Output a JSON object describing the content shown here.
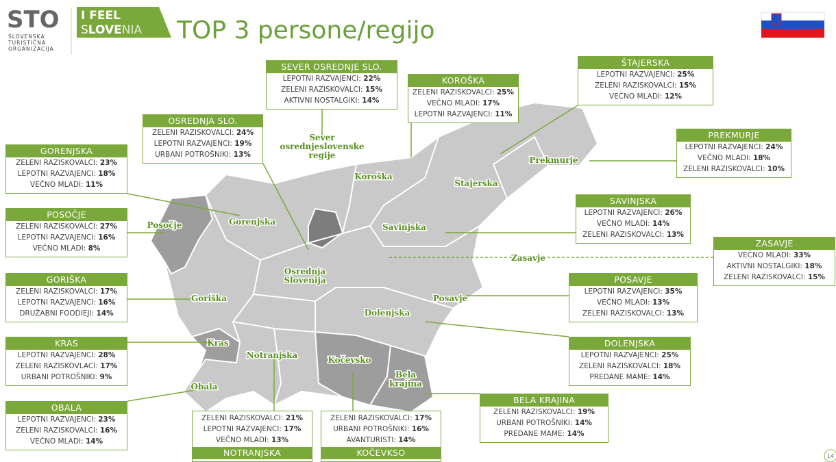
{
  "header": {
    "logo": {
      "mark": "STO",
      "lines": [
        "SLOVENSKA",
        "TURISTIČNA",
        "ORGANIZACIJA"
      ]
    },
    "slogan": {
      "line1": "I FEEL",
      "line2": [
        "S",
        "LOVE",
        "NIA"
      ]
    },
    "title": "TOP 3 persone/regijo"
  },
  "regions": [
    {
      "name": "SEVER OSREDNJE SLO.",
      "rows": [
        [
          "LEPOTNI RAZVAJENCI:",
          "22%"
        ],
        [
          "ZELENI RAZISKOVALCI:",
          "15%"
        ],
        [
          "AKTIVNI NOSTALGIKI:",
          "14%"
        ]
      ]
    },
    {
      "name": "KOROŠKA",
      "rows": [
        [
          "ZELENI RAZISKOVALCI:",
          "25%"
        ],
        [
          "VEČNO MLADI:",
          "17%"
        ],
        [
          "LEPOTNI RAZVAJENCI:",
          "11%"
        ]
      ]
    },
    {
      "name": "ŠTAJERSKA",
      "rows": [
        [
          "LEPOTNI RAZVAJENCI:",
          "25%"
        ],
        [
          "ZELENI RAZISKOVALCI:",
          "15%"
        ],
        [
          "VEČNO MLADI:",
          "12%"
        ]
      ]
    },
    {
      "name": "OSREDNJA SLO.",
      "rows": [
        [
          "ZELENI RAZISKOVALCI:",
          "24%"
        ],
        [
          "LEPOTNI RAZVAJENCI:",
          "19%"
        ],
        [
          "URBANI POTROŠNIKI:",
          "13%"
        ]
      ]
    },
    {
      "name": "GORENJSKA",
      "rows": [
        [
          "ZELENI RAZISKOVALCI:",
          "23%"
        ],
        [
          "LEPOTNI RAZVAJENCI:",
          "18%"
        ],
        [
          "VEČNO MLADI:",
          "11%"
        ]
      ]
    },
    {
      "name": "PREKMURJE",
      "rows": [
        [
          "LEPOTNI RAZVAJENCI:",
          "24%"
        ],
        [
          "VEČNO MLADI:",
          "18%"
        ],
        [
          "ZELENI RAZISKOVALCI:",
          "10%"
        ]
      ]
    },
    {
      "name": "POSOČJE",
      "rows": [
        [
          "ZELENI RAZISKOVALCI:",
          "27%"
        ],
        [
          "LEPOTNI RAZVAJENCI:",
          "16%"
        ],
        [
          "VEČNO MLADI:",
          "8%"
        ]
      ]
    },
    {
      "name": "SAVINJSKA",
      "rows": [
        [
          "LEPOTNI RAZVAJENCI:",
          "26%"
        ],
        [
          "VEČNO MLADI:",
          "14%"
        ],
        [
          "ZELENI RAZISKOVALCI:",
          "13%"
        ]
      ]
    },
    {
      "name": "ZASAVJE",
      "rows": [
        [
          "VEČNO MLADI:",
          "33%"
        ],
        [
          "AKTIVNI NOSTALGIKI:",
          "18%"
        ],
        [
          "ZELENI RAZISKOVALCI:",
          "15%"
        ]
      ]
    },
    {
      "name": "GORIŠKA",
      "rows": [
        [
          "ZELENI RAZISKOVALCI:",
          "17%"
        ],
        [
          "LEPOTNI RAZVAJENCI:",
          "16%"
        ],
        [
          "DRUŽABNI FOODIEJI:",
          "14%"
        ]
      ]
    },
    {
      "name": "POSAVJE",
      "rows": [
        [
          "LEPOTNI RAZVAJENCI:",
          "35%"
        ],
        [
          "VEČNO MLADI:",
          "13%"
        ],
        [
          "ZELENI RAZISKOVALCI:",
          "13%"
        ]
      ]
    },
    {
      "name": "KRAS",
      "rows": [
        [
          "LEPOTNI RAZVAJENCI:",
          "28%"
        ],
        [
          "ZELENI RAZISKOVLACI:",
          "17%"
        ],
        [
          "URBANI POTROŠNIKI:",
          "9%"
        ]
      ]
    },
    {
      "name": "DOLENJSKA",
      "rows": [
        [
          "LEPOTNI RAZVAJENCI:",
          "25%"
        ],
        [
          "ZELENI RAZISKOVALCI:",
          "18%"
        ],
        [
          "PREDANE MAME:",
          "14%"
        ]
      ]
    },
    {
      "name": "OBALA",
      "rows": [
        [
          "LEPOTNI RAZVAJENCI:",
          "23%"
        ],
        [
          "ZELENI RAZISKOVALCI:",
          "16%"
        ],
        [
          "VEČNO MLADI:",
          "14%"
        ]
      ]
    },
    {
      "name": "BELA KRAJINA",
      "rows": [
        [
          "ZELENI RAZISKOVALCI:",
          "19%"
        ],
        [
          "URBANI POTROŠNIKI:",
          "14%"
        ],
        [
          "PREDANE MAME:",
          "14%"
        ]
      ]
    },
    {
      "name": "NOTRANJSKA",
      "rows": [
        [
          "ZELENI RAZISKOVALCI:",
          "21%"
        ],
        [
          "LEPOTNI RAZVAJENCI:",
          "17%"
        ],
        [
          "VEČNO MLADI:",
          "13%"
        ]
      ]
    },
    {
      "name": "KOČEVKSO",
      "rows": [
        [
          "ZELENI RAZISKOVALCI:",
          "17%"
        ],
        [
          "URBANI POTROŠNIKI:",
          "16%"
        ],
        [
          "AVANTURISTI:",
          "14%"
        ]
      ]
    }
  ],
  "map_labels": [
    [
      "Sever",
      "osrednjeslovenske",
      "regije"
    ],
    [
      "Koroška"
    ],
    [
      "Štajerska"
    ],
    [
      "Prekmurje"
    ],
    [
      "Gorenjska"
    ],
    [
      "Posočje"
    ],
    [
      "Savinjska"
    ],
    [
      "Zasavje"
    ],
    [
      "Osrednja",
      "Slovenija"
    ],
    [
      "Goriška"
    ],
    [
      "Posavje"
    ],
    [
      "Dolenjska"
    ],
    [
      "Kras"
    ],
    [
      "Notranjska"
    ],
    [
      "Kočevsko"
    ],
    [
      "Bela",
      "krajina"
    ],
    [
      "Obala"
    ]
  ],
  "page_number": "14"
}
